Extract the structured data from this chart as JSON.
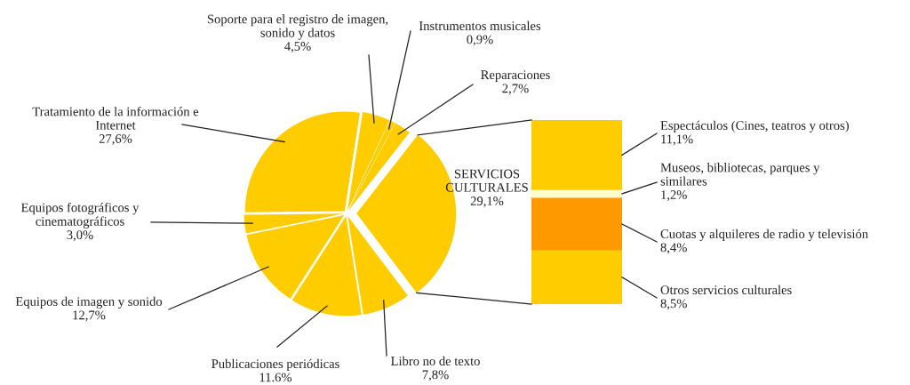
{
  "chart_data": [
    {
      "type": "pie",
      "categories": [
        "SERVICIOS\nCULTURALES",
        "Libro no de texto",
        "Publicaciones periódicas",
        "Equipos de imagen y sonido",
        "Equipos fotográficos y\ncinematográficos",
        "Tratamiento de la información e\nInternet",
        "Soporte para el registro de imagen,\nsonido y datos",
        "Instrumentos musicales",
        "Reparaciones"
      ],
      "values": [
        29.1,
        7.8,
        11.6,
        12.7,
        3.0,
        27.6,
        4.5,
        0.9,
        2.7
      ],
      "value_labels": [
        "29,1%",
        "7,8%",
        "11.6%",
        "12,7%",
        "3,0%",
        "27,6%",
        "4,5%",
        "0,9%",
        "2,7%"
      ],
      "colors": [
        "#ffcc00",
        "#ffcc00",
        "#ffcc00",
        "#ffcc00",
        "#ffcc00",
        "#ffcc00",
        "#ffcc00",
        "#ffcc00",
        "#ffcc00"
      ]
    },
    {
      "type": "bar",
      "stacked": true,
      "categories": [
        null
      ],
      "series": [
        {
          "name": "Otros servicios culturales",
          "color": "#ffcc00",
          "values": [
            8.5
          ],
          "value_labels": [
            "8,5%"
          ]
        },
        {
          "name": "Cuotas y alquileres de radio y televisión",
          "color": "#ff9900",
          "values": [
            8.4
          ],
          "value_labels": [
            "8,4%"
          ]
        },
        {
          "name": "Museos, bibliotecas, parques y\nsimilares",
          "color": "#ffffcc",
          "values": [
            1.2
          ],
          "value_labels": [
            "1,2%"
          ]
        },
        {
          "name": "Espectáculos (Cines, teatros y otros)",
          "color": "#ffcc00",
          "values": [
            11.1
          ],
          "value_labels": [
            "11,1%"
          ]
        }
      ]
    }
  ]
}
